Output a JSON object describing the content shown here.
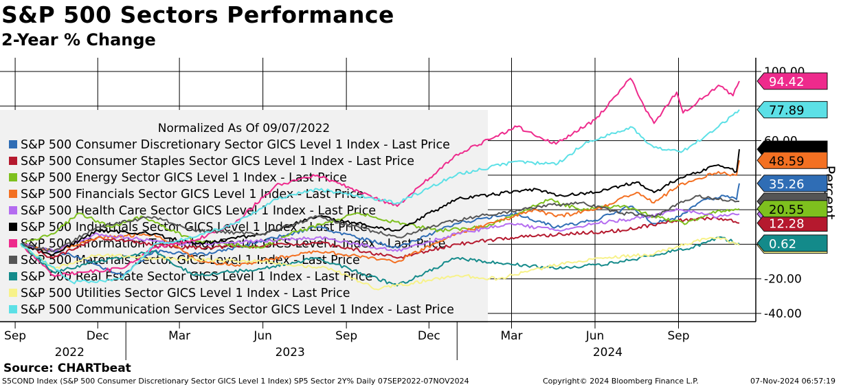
{
  "header": {
    "title": "S&P 500 Sectors Performance",
    "subtitle": "2-Year % Change"
  },
  "footer": {
    "source": "Source: CHARTbeat",
    "ticker_info": "S5COND Index (S&P 500 Consumer Discretionary Sector GICS Level 1 Index) SP5 Sector 2Y%  Daily 07SEP2022-07NOV2024",
    "copyright": "Copyright© 2024 Bloomberg Finance L.P.",
    "timestamp": "07-Nov-2024 06:57:19"
  },
  "chart_data": {
    "type": "line",
    "legend_title": "Normalized As Of 09/07/2022",
    "legend_position": "left",
    "ylabel": "Percent",
    "ylim": [
      -40,
      100
    ],
    "y_tick_labels": [
      "100.00",
      "60.00",
      "-20.00",
      "-40.00"
    ],
    "grid": true,
    "x_range": [
      "2022-09-07",
      "2024-11-07"
    ],
    "month_ticks": [
      {
        "label": "Sep",
        "date": "2022-09-01"
      },
      {
        "label": "Dec",
        "date": "2022-12-01"
      },
      {
        "label": "Mar",
        "date": "2023-03-01"
      },
      {
        "label": "Jun",
        "date": "2023-06-01"
      },
      {
        "label": "Sep",
        "date": "2023-09-01"
      },
      {
        "label": "Dec",
        "date": "2023-12-01"
      },
      {
        "label": "Mar",
        "date": "2024-03-01"
      },
      {
        "label": "Jun",
        "date": "2024-06-01"
      },
      {
        "label": "Sep",
        "date": "2024-09-01"
      }
    ],
    "year_labels": [
      {
        "label": "2022",
        "date": "2022-10-31"
      },
      {
        "label": "2023",
        "date": "2023-07-01"
      },
      {
        "label": "2024",
        "date": "2024-06-15"
      }
    ],
    "year_dividers": [
      "2023-01-01",
      "2024-01-01"
    ],
    "series": [
      {
        "name": "S&P 500 Consumer Discretionary Sector GICS Level 1 Index - Last Price",
        "color": "#2f6db5",
        "last_value": 35.26,
        "last_label": "35.26",
        "label_text_color": "#ffffff",
        "points": [
          [
            "2022-09-07",
            0
          ],
          [
            "2022-11-01",
            -6
          ],
          [
            "2022-12-28",
            -18
          ],
          [
            "2023-02-01",
            -4
          ],
          [
            "2023-04-01",
            -6
          ],
          [
            "2023-06-01",
            2
          ],
          [
            "2023-07-31",
            10
          ],
          [
            "2023-10-27",
            -2
          ],
          [
            "2023-12-31",
            12
          ],
          [
            "2024-03-01",
            18
          ],
          [
            "2024-04-19",
            10
          ],
          [
            "2024-06-01",
            14
          ],
          [
            "2024-07-10",
            22
          ],
          [
            "2024-08-05",
            12
          ],
          [
            "2024-09-01",
            16
          ],
          [
            "2024-10-01",
            26
          ],
          [
            "2024-10-25",
            28
          ],
          [
            "2024-11-04",
            26
          ],
          [
            "2024-11-07",
            35.26
          ]
        ]
      },
      {
        "name": "S&P 500 Consumer Staples Sector GICS Level 1 Index - Last Price",
        "color": "#b5192e",
        "last_value": 12.28,
        "last_label": "12.28",
        "label_text_color": "#ffffff",
        "points": [
          [
            "2022-09-07",
            0
          ],
          [
            "2022-10-13",
            -8
          ],
          [
            "2022-12-01",
            4
          ],
          [
            "2023-03-01",
            -2
          ],
          [
            "2023-06-01",
            -1
          ],
          [
            "2023-08-01",
            1
          ],
          [
            "2023-10-27",
            -8
          ],
          [
            "2023-12-31",
            0
          ],
          [
            "2024-03-01",
            4
          ],
          [
            "2024-05-01",
            6
          ],
          [
            "2024-07-01",
            8
          ],
          [
            "2024-09-01",
            14
          ],
          [
            "2024-10-18",
            15
          ],
          [
            "2024-11-07",
            12.28
          ]
        ]
      },
      {
        "name": "S&P 500 Energy Sector GICS Level 1 Index - Last Price",
        "color": "#7ec01e",
        "last_value": 20.55,
        "last_label": "20.55",
        "label_text_color": "#000000",
        "points": [
          [
            "2022-09-07",
            0
          ],
          [
            "2022-10-13",
            6
          ],
          [
            "2022-11-10",
            18
          ],
          [
            "2022-12-15",
            10
          ],
          [
            "2023-01-20",
            16
          ],
          [
            "2023-03-17",
            2
          ],
          [
            "2023-05-31",
            -2
          ],
          [
            "2023-07-01",
            6
          ],
          [
            "2023-09-15",
            18
          ],
          [
            "2023-10-15",
            14
          ],
          [
            "2023-12-12",
            8
          ],
          [
            "2024-02-01",
            10
          ],
          [
            "2024-04-12",
            26
          ],
          [
            "2024-05-15",
            20
          ],
          [
            "2024-07-01",
            22
          ],
          [
            "2024-08-05",
            16
          ],
          [
            "2024-09-10",
            12
          ],
          [
            "2024-10-07",
            18
          ],
          [
            "2024-11-07",
            20.55
          ]
        ]
      },
      {
        "name": "S&P 500 Financials Sector GICS Level 1 Index - Last Price",
        "color": "#f37022",
        "last_value": 48.59,
        "last_label": "48.59",
        "label_text_color": "#000000",
        "points": [
          [
            "2022-09-07",
            0
          ],
          [
            "2022-10-13",
            -4
          ],
          [
            "2022-12-01",
            4
          ],
          [
            "2023-02-01",
            6
          ],
          [
            "2023-03-24",
            -10
          ],
          [
            "2023-05-04",
            -12
          ],
          [
            "2023-07-31",
            -4
          ],
          [
            "2023-10-27",
            -10
          ],
          [
            "2023-12-31",
            6
          ],
          [
            "2024-03-28",
            20
          ],
          [
            "2024-04-19",
            16
          ],
          [
            "2024-06-01",
            20
          ],
          [
            "2024-07-17",
            30
          ],
          [
            "2024-08-05",
            24
          ],
          [
            "2024-09-01",
            34
          ],
          [
            "2024-10-15",
            42
          ],
          [
            "2024-11-04",
            40
          ],
          [
            "2024-11-07",
            48.59
          ]
        ]
      },
      {
        "name": "S&P 500 Health Care Sector GICS Level 1 Index - Last Price",
        "color": "#b46cf0",
        "last_value": 17.5,
        "last_label": "",
        "label_text_color": "#000000",
        "points": [
          [
            "2022-09-07",
            0
          ],
          [
            "2022-10-13",
            -4
          ],
          [
            "2022-12-01",
            6
          ],
          [
            "2023-03-01",
            0
          ],
          [
            "2023-06-01",
            2
          ],
          [
            "2023-08-01",
            4
          ],
          [
            "2023-10-27",
            -4
          ],
          [
            "2023-12-31",
            6
          ],
          [
            "2024-03-01",
            12
          ],
          [
            "2024-04-19",
            8
          ],
          [
            "2024-06-01",
            12
          ],
          [
            "2024-08-01",
            16
          ],
          [
            "2024-09-01",
            20
          ],
          [
            "2024-10-15",
            16
          ],
          [
            "2024-11-07",
            17.5
          ]
        ]
      },
      {
        "name": "S&P 500 Industrials Sector GICS Level 1 Index - Last Price",
        "color": "#000000",
        "last_value": 55,
        "last_label": "",
        "label_text_color": "#ffffff",
        "points": [
          [
            "2022-09-07",
            0
          ],
          [
            "2022-10-13",
            -6
          ],
          [
            "2022-12-01",
            8
          ],
          [
            "2023-02-01",
            6
          ],
          [
            "2023-03-17",
            0
          ],
          [
            "2023-06-01",
            6
          ],
          [
            "2023-07-31",
            16
          ],
          [
            "2023-10-27",
            8
          ],
          [
            "2023-12-31",
            26
          ],
          [
            "2024-03-28",
            32
          ],
          [
            "2024-04-19",
            28
          ],
          [
            "2024-06-01",
            30
          ],
          [
            "2024-07-17",
            36
          ],
          [
            "2024-08-05",
            30
          ],
          [
            "2024-09-01",
            38
          ],
          [
            "2024-10-15",
            46
          ],
          [
            "2024-11-04",
            42
          ],
          [
            "2024-11-07",
            55
          ]
        ]
      },
      {
        "name": "S&P 500 Information Technology Sector GICS Level 1 Index - Last Price",
        "color": "#ee2a8c",
        "last_value": 94.42,
        "last_label": "94.42",
        "label_text_color": "#ffffff",
        "points": [
          [
            "2022-09-07",
            0
          ],
          [
            "2022-10-13",
            -18
          ],
          [
            "2022-12-28",
            -14
          ],
          [
            "2023-02-01",
            -2
          ],
          [
            "2023-03-17",
            2
          ],
          [
            "2023-05-01",
            12
          ],
          [
            "2023-06-15",
            34
          ],
          [
            "2023-07-31",
            40
          ],
          [
            "2023-10-27",
            22
          ],
          [
            "2023-12-31",
            52
          ],
          [
            "2024-03-07",
            68
          ],
          [
            "2024-04-19",
            58
          ],
          [
            "2024-06-01",
            72
          ],
          [
            "2024-07-10",
            96
          ],
          [
            "2024-07-25",
            80
          ],
          [
            "2024-08-05",
            70
          ],
          [
            "2024-08-30",
            88
          ],
          [
            "2024-09-06",
            76
          ],
          [
            "2024-10-15",
            92
          ],
          [
            "2024-10-31",
            86
          ],
          [
            "2024-11-07",
            94.42
          ]
        ]
      },
      {
        "name": "S&P 500 Materials Sector GICS Level 1 Index - Last Price",
        "color": "#555555",
        "last_value": 24.83,
        "last_label": "",
        "label_text_color": "#ffffff",
        "points": [
          [
            "2022-09-07",
            0
          ],
          [
            "2022-10-13",
            -4
          ],
          [
            "2022-12-01",
            10
          ],
          [
            "2023-02-01",
            16
          ],
          [
            "2023-03-17",
            8
          ],
          [
            "2023-06-01",
            6
          ],
          [
            "2023-07-31",
            16
          ],
          [
            "2023-10-27",
            4
          ],
          [
            "2023-12-31",
            14
          ],
          [
            "2024-04-01",
            22
          ],
          [
            "2024-05-15",
            24
          ],
          [
            "2024-07-01",
            18
          ],
          [
            "2024-08-05",
            16
          ],
          [
            "2024-09-20",
            28
          ],
          [
            "2024-10-15",
            26
          ],
          [
            "2024-11-07",
            24.83
          ]
        ]
      },
      {
        "name": "S&P 500 Real Estate Sector GICS Level 1 Index - Last Price",
        "color": "#138a8a",
        "last_value": 0.62,
        "last_label": "0.62",
        "label_text_color": "#ffffff",
        "points": [
          [
            "2022-09-07",
            0
          ],
          [
            "2022-10-13",
            -16
          ],
          [
            "2022-12-01",
            -10
          ],
          [
            "2023-02-01",
            -4
          ],
          [
            "2023-03-17",
            -18
          ],
          [
            "2023-06-01",
            -14
          ],
          [
            "2023-07-31",
            -8
          ],
          [
            "2023-10-27",
            -24
          ],
          [
            "2023-12-31",
            -8
          ],
          [
            "2024-04-17",
            -14
          ],
          [
            "2024-06-01",
            -12
          ],
          [
            "2024-07-01",
            -10
          ],
          [
            "2024-09-15",
            -2
          ],
          [
            "2024-10-15",
            4
          ],
          [
            "2024-11-07",
            0.62
          ]
        ]
      },
      {
        "name": "S&P 500 Utilities Sector GICS Level 1 Index - Last Price",
        "color": "#f7f28a",
        "last_value": -0.5,
        "last_label": "",
        "label_text_color": "#000000",
        "points": [
          [
            "2022-09-07",
            0
          ],
          [
            "2022-10-13",
            -14
          ],
          [
            "2022-12-01",
            -6
          ],
          [
            "2023-02-01",
            -8
          ],
          [
            "2023-06-01",
            -10
          ],
          [
            "2023-08-15",
            -14
          ],
          [
            "2023-10-04",
            -26
          ],
          [
            "2023-12-31",
            -18
          ],
          [
            "2024-02-15",
            -20
          ],
          [
            "2024-04-01",
            -14
          ],
          [
            "2024-06-01",
            -8
          ],
          [
            "2024-08-01",
            -6
          ],
          [
            "2024-09-20",
            2
          ],
          [
            "2024-10-15",
            4
          ],
          [
            "2024-11-07",
            -0.5
          ]
        ]
      },
      {
        "name": "S&P 500 Communication Services Sector GICS Level 1 Index - Last Price",
        "color": "#5ce0e6",
        "last_value": 77.89,
        "last_label": "77.89",
        "label_text_color": "#000000",
        "points": [
          [
            "2022-09-07",
            0
          ],
          [
            "2022-11-03",
            -22
          ],
          [
            "2022-12-28",
            -20
          ],
          [
            "2023-02-01",
            0
          ],
          [
            "2023-03-17",
            4
          ],
          [
            "2023-05-01",
            12
          ],
          [
            "2023-06-15",
            26
          ],
          [
            "2023-07-31",
            32
          ],
          [
            "2023-10-27",
            24
          ],
          [
            "2023-12-31",
            40
          ],
          [
            "2024-03-07",
            48
          ],
          [
            "2024-04-19",
            46
          ],
          [
            "2024-05-20",
            58
          ],
          [
            "2024-07-10",
            68
          ],
          [
            "2024-08-05",
            56
          ],
          [
            "2024-09-06",
            54
          ],
          [
            "2024-10-15",
            68
          ],
          [
            "2024-11-07",
            77.89
          ]
        ]
      }
    ]
  }
}
